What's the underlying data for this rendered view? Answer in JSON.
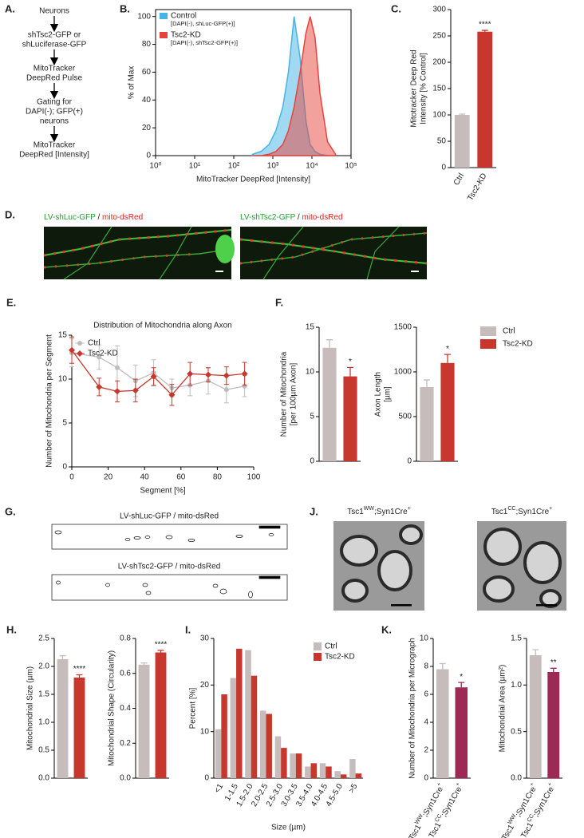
{
  "flowchart": {
    "panel": "A.",
    "steps": [
      [
        "Neurons"
      ],
      [
        "shTsc2-GFP or",
        "shLuciferase-GFP"
      ],
      [
        "MitoTracker",
        "DeepRed Pulse"
      ],
      [
        "Gating for",
        "DAPI(-); GFP(+)",
        "neurons"
      ],
      [
        "MitoTracker",
        "DeepRed [Intensity]"
      ]
    ]
  },
  "micrographs": {
    "panel": "D.",
    "images": [
      {
        "title": [
          {
            "text": "LV-shLuc-GFP",
            "color": "#1f9e2c"
          },
          {
            "text": " / ",
            "color": "#222222"
          },
          {
            "text": "mito-dsRed",
            "color": "#e0201b"
          }
        ]
      },
      {
        "title": [
          {
            "text": "LV-shTsc2-GFP",
            "color": "#1f9e2c"
          },
          {
            "text": " / ",
            "color": "#222222"
          },
          {
            "text": "mito-dsRed",
            "color": "#e0201b"
          }
        ]
      }
    ]
  },
  "outlines": {
    "panel": "G.",
    "images": [
      {
        "title": "LV-shLuc-GFP / mito-dsRed"
      },
      {
        "title": "LV-shTsc2-GFP / mito-dsRed"
      }
    ]
  },
  "em": {
    "panel": "J.",
    "images": [
      {
        "title": {
          "gene": "Tsc1",
          "allele": "WW",
          "driver": ";Syn1Cre",
          "sign": "+"
        }
      },
      {
        "title": {
          "gene": "Tsc1",
          "allele": "CC",
          "driver": ";Syn1Cre",
          "sign": "+"
        }
      }
    ]
  },
  "chart_data": [
    {
      "type": "area",
      "panel": "B.",
      "xlabel": "MitoTracker DeepRed [Intensity]",
      "ylabel": "% of Max",
      "log_x": true,
      "x": [
        300,
        500,
        800,
        1200,
        1800,
        2500,
        3500,
        5000,
        7000,
        9000,
        12000,
        16000,
        25000,
        40000
      ],
      "xlim": [
        1,
        100000
      ],
      "xticks": [
        {
          "value": 1,
          "label": "10⁰"
        },
        {
          "value": 10,
          "label": "10¹"
        },
        {
          "value": 100,
          "label": "10²"
        },
        {
          "value": 1000,
          "label": "10³"
        },
        {
          "value": 10000,
          "label": "10⁴"
        },
        {
          "value": 100000,
          "label": "10⁵"
        }
      ],
      "ylim": [
        0,
        105
      ],
      "yticks": [
        0,
        20,
        40,
        60,
        80,
        100
      ],
      "legend": "upper left",
      "series": [
        {
          "name": "Control",
          "detail": "[DAPI(-), shLuc-GFP(+)]",
          "color": "#45b4e6",
          "values": [
            1,
            3,
            8,
            18,
            35,
            60,
            100,
            70,
            25,
            8,
            3,
            1,
            0,
            0
          ]
        },
        {
          "name": "Tsc2-KD",
          "detail": "[DAPI(-), shTsc2-GFP(+)]",
          "color": "#e8433a",
          "values": [
            0,
            0,
            1,
            3,
            8,
            18,
            35,
            60,
            88,
            100,
            85,
            45,
            10,
            1
          ]
        }
      ]
    },
    {
      "type": "bar",
      "panel": "C.",
      "ylabel": [
        "Mitotracker Deep Red",
        "Intensity [% Control]"
      ],
      "categories": [
        "Ctrl",
        "Tsc2-KD"
      ],
      "values": [
        100,
        258
      ],
      "errors": [
        1.5,
        2.5
      ],
      "colors": [
        "#c6bcbc",
        "#c8372d"
      ],
      "annotations": [
        null,
        "****"
      ],
      "ylim": [
        0,
        300
      ],
      "yticks": [
        0,
        50,
        100,
        150,
        200,
        250,
        300
      ]
    },
    {
      "type": "line",
      "panel": "E.",
      "title": "Distribution of Mitochondria along Axon",
      "xlabel": "Segment [%]",
      "ylabel": "Number of Mitochondria per Segment",
      "x": [
        0,
        15,
        25,
        35,
        45,
        55,
        65,
        75,
        85,
        95
      ],
      "xlim": [
        0,
        100
      ],
      "xticks": [
        0,
        20,
        40,
        60,
        80,
        100
      ],
      "ylim": [
        0,
        15
      ],
      "yticks": [
        0,
        5,
        10,
        15
      ],
      "legend": "upper left",
      "series": [
        {
          "name": "Ctrl",
          "color": "#bdbdbd",
          "marker": "circle",
          "values": [
            13,
            12.5,
            11.3,
            9.8,
            10.7,
            9,
            9.3,
            9.8,
            8.8,
            9.2
          ],
          "errors": [
            1.6,
            1.4,
            2.5,
            1.8,
            1.5,
            1.0,
            1.2,
            1.5,
            1.5,
            1.2
          ]
        },
        {
          "name": "Tsc2-KD",
          "color": "#c8372d",
          "marker": "diamond",
          "values": [
            13.3,
            9.1,
            8.6,
            8.7,
            10.3,
            8.2,
            10.6,
            10.5,
            10.4,
            10.6
          ],
          "errors": [
            1.5,
            1.0,
            1.2,
            1.3,
            1.0,
            1.2,
            1.3,
            0.8,
            1.0,
            1.3
          ]
        }
      ]
    },
    {
      "type": "bar",
      "panel": "F.",
      "ylabel": [
        "Number of Mitochondria",
        "[per 100µm Axon]"
      ],
      "values": [
        12.7,
        9.5
      ],
      "errors": [
        0.9,
        1.0
      ],
      "colors": [
        "#c6bcbc",
        "#c8372d"
      ],
      "annotations": [
        null,
        "*"
      ],
      "ylim": [
        0,
        15
      ],
      "yticks": [
        0,
        5,
        10,
        15
      ]
    },
    {
      "type": "bar",
      "ylabel": [
        "Axon Length",
        "[µm]"
      ],
      "values": [
        830,
        1100
      ],
      "errors": [
        80,
        95
      ],
      "colors": [
        "#c6bcbc",
        "#c8372d"
      ],
      "annotations": [
        null,
        "*"
      ],
      "ylim": [
        0,
        1500
      ],
      "yticks": [
        0,
        500,
        1000,
        1500
      ],
      "legend_entries": [
        "Ctrl",
        "Tsc2-KD"
      ],
      "legend": "right"
    },
    {
      "type": "bar",
      "panel": "H.",
      "ylabel": [
        "Mitochondrial Size (µm)"
      ],
      "values": [
        2.13,
        1.8
      ],
      "errors": [
        0.06,
        0.05
      ],
      "colors": [
        "#c6bcbc",
        "#c8372d"
      ],
      "annotations": [
        null,
        "****"
      ],
      "ylim": [
        0,
        2.5
      ],
      "yticks": [
        {
          "value": 0,
          "label": "0.0"
        },
        0.5,
        {
          "value": 1,
          "label": "1.0"
        },
        1.5,
        {
          "value": 2,
          "label": "2.0"
        },
        2.5
      ]
    },
    {
      "type": "bar",
      "ylabel": [
        "Mitochondrial Shape (Circularity)"
      ],
      "values": [
        0.65,
        0.72
      ],
      "errors": [
        0.01,
        0.012
      ],
      "colors": [
        "#c6bcbc",
        "#c8372d"
      ],
      "annotations": [
        null,
        "****"
      ],
      "ylim": [
        0,
        0.8
      ],
      "yticks": [
        {
          "value": 0,
          "label": "0.0"
        },
        0.2,
        0.4,
        0.6,
        0.8
      ]
    },
    {
      "type": "grouped_bar",
      "panel": "I.",
      "ylabel": [
        "Percent [%]"
      ],
      "xlabel": "Size (µm)",
      "categories": [
        "<1",
        "1-1.5",
        "1.5-2.0",
        "2.0-2.5",
        "2.5-3.0",
        "3.0-3.5",
        "3.5-4.0",
        "4.0-4.5",
        "4.5-5.0",
        ">5"
      ],
      "ylim": [
        0,
        30
      ],
      "yticks": [
        0,
        10,
        20,
        30
      ],
      "legend": "upper right",
      "series": [
        {
          "name": "Ctrl",
          "color": "#c6bcbc",
          "values": [
            10.5,
            21.5,
            27.5,
            14.5,
            9,
            5.3,
            2.5,
            3.2,
            1.5,
            4.1
          ]
        },
        {
          "name": "Tsc2-KD",
          "color": "#c8372d",
          "values": [
            18,
            27.8,
            22,
            13.8,
            6.5,
            5.3,
            3.2,
            2.5,
            0.8,
            1
          ]
        }
      ]
    },
    {
      "type": "bar",
      "panel": "K.",
      "ylabel": [
        "Number of Mitochondria per Micrograph"
      ],
      "categories": [
        {
          "gene": "Tsc1",
          "allele": "WW",
          "driver": ";Syn1Cre",
          "sign": "+"
        },
        {
          "gene": "Tsc1",
          "allele": "CC",
          "driver": ";Syn1Cre",
          "sign": "+"
        }
      ],
      "values": [
        7.8,
        6.5
      ],
      "errors": [
        0.4,
        0.35
      ],
      "colors": [
        "#c6bcbc",
        "#9c2a55"
      ],
      "annotations": [
        null,
        "*"
      ],
      "ylim": [
        0,
        10
      ],
      "yticks": [
        0,
        2,
        4,
        6,
        8,
        10
      ]
    },
    {
      "type": "bar",
      "ylabel": [
        "Mitochondrial Area (µm²)"
      ],
      "categories": [
        {
          "gene": "Tsc1",
          "allele": "WW",
          "driver": ";Syn1Cre",
          "sign": "+"
        },
        {
          "gene": "Tsc1",
          "allele": "CC",
          "driver": ";Syn1Cre",
          "sign": "+"
        }
      ],
      "values": [
        1.32,
        1.14
      ],
      "errors": [
        0.06,
        0.04
      ],
      "colors": [
        "#c6bcbc",
        "#9c2a55"
      ],
      "annotations": [
        null,
        "**"
      ],
      "ylim": [
        0,
        1.5
      ],
      "yticks": [
        {
          "value": 0,
          "label": "0.0"
        },
        0.5,
        {
          "value": 1,
          "label": "1.0"
        },
        1.5
      ]
    }
  ]
}
